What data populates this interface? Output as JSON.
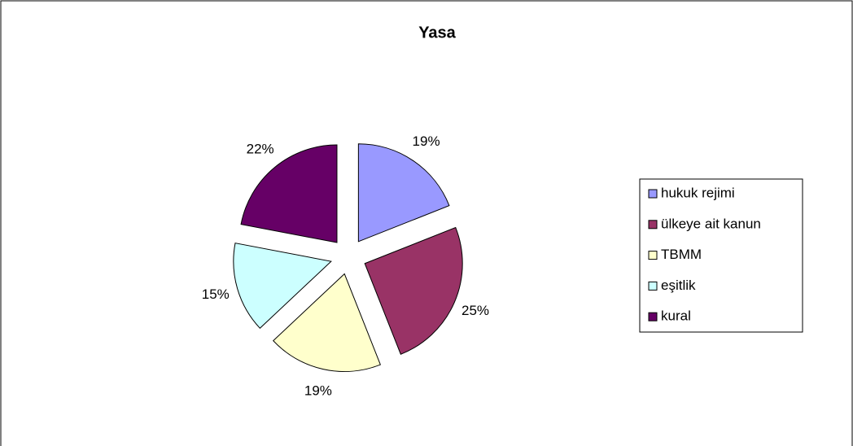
{
  "chart_data": {
    "type": "pie",
    "title": "Yasa",
    "categories": [
      "hukuk rejimi",
      "ülkeye ait kanun",
      "TBMM",
      "eşitlik",
      "kural"
    ],
    "values": [
      19,
      25,
      19,
      15,
      22
    ],
    "value_labels": [
      "19%",
      "25%",
      "19%",
      "15%",
      "22%"
    ],
    "colors": [
      "#9999ff",
      "#993366",
      "#ffffcc",
      "#ccffff",
      "#660066"
    ],
    "exploded": true,
    "legend": "right"
  }
}
